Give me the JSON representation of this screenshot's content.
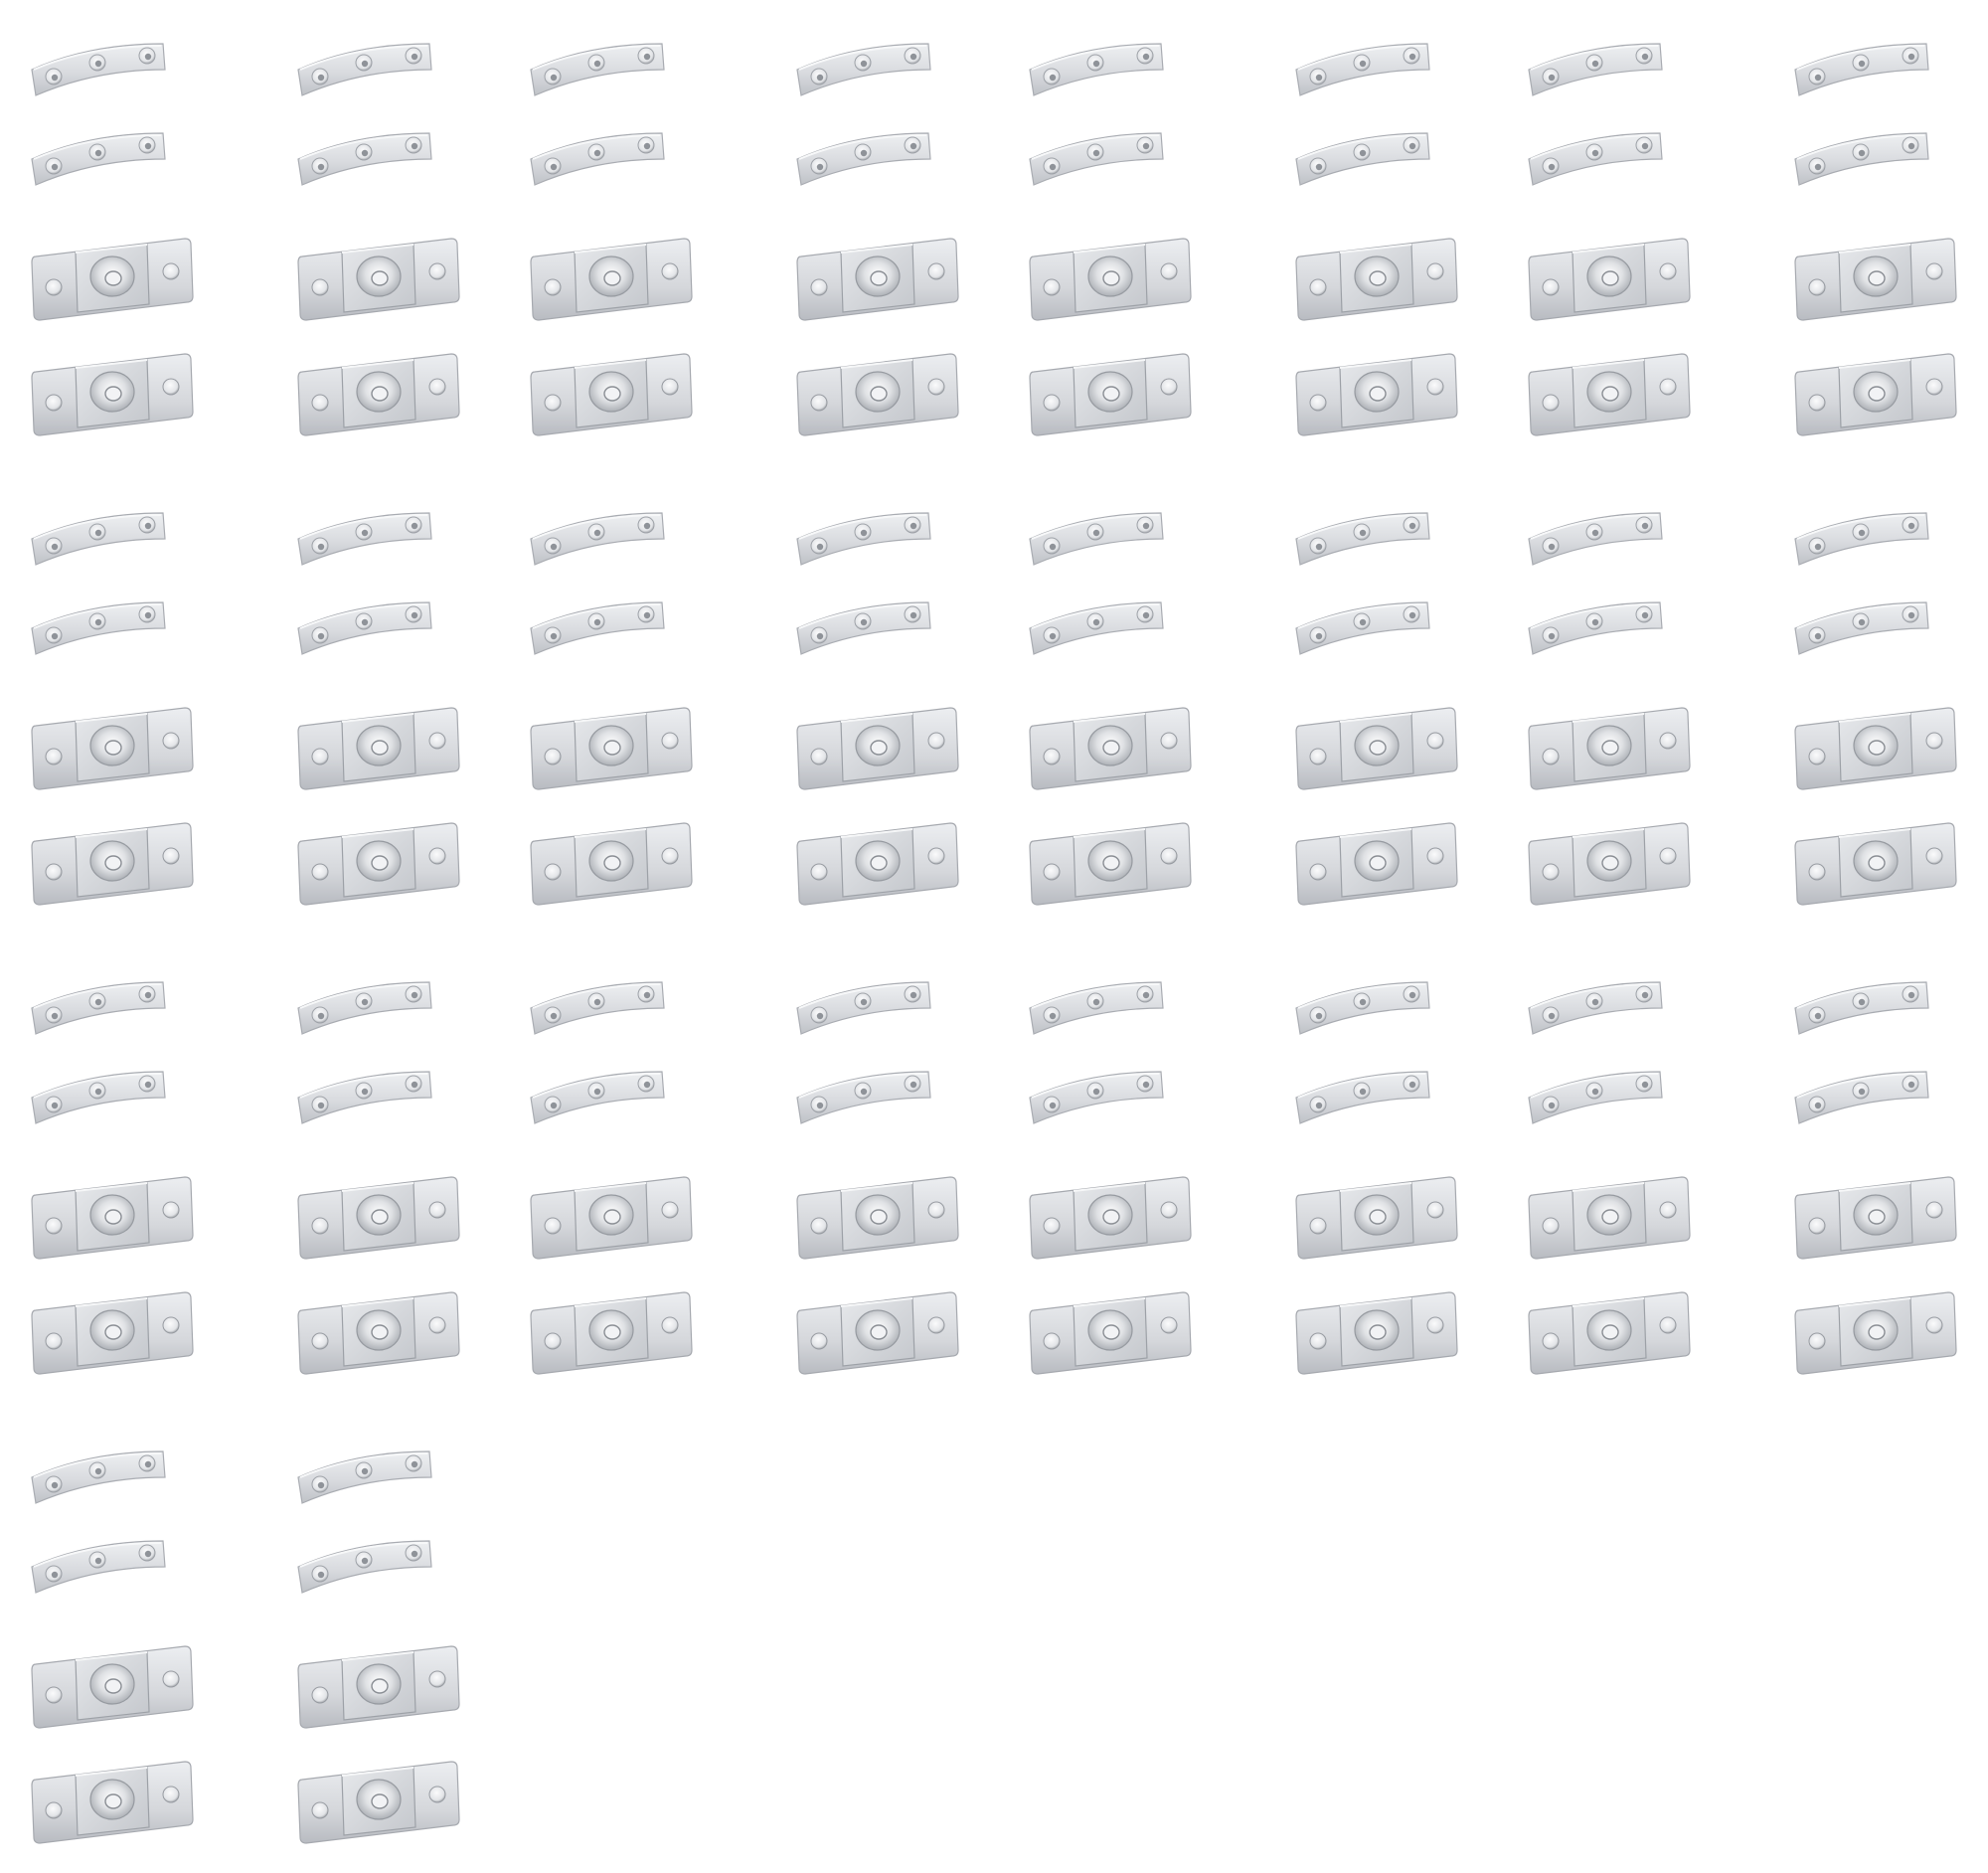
{
  "image": {
    "background": "#ffffff",
    "part_colors": {
      "light": "#e2e3e6",
      "mid": "#c9cbd0",
      "dark": "#a9acb2",
      "hole": "#8c8f95",
      "hole_bg": "#f4f4f6"
    },
    "groups": [
      {
        "set_count": 8,
        "parts": [
          "curved-strip",
          "curved-strip",
          "mount-plate",
          "mount-plate"
        ]
      },
      {
        "set_count": 8,
        "parts": [
          "curved-strip",
          "curved-strip",
          "mount-plate",
          "mount-plate"
        ]
      },
      {
        "set_count": 8,
        "parts": [
          "curved-strip",
          "curved-strip",
          "mount-plate",
          "mount-plate"
        ]
      },
      {
        "set_count": 2,
        "parts": [
          "curved-strip",
          "curved-strip",
          "mount-plate",
          "mount-plate"
        ]
      }
    ]
  }
}
